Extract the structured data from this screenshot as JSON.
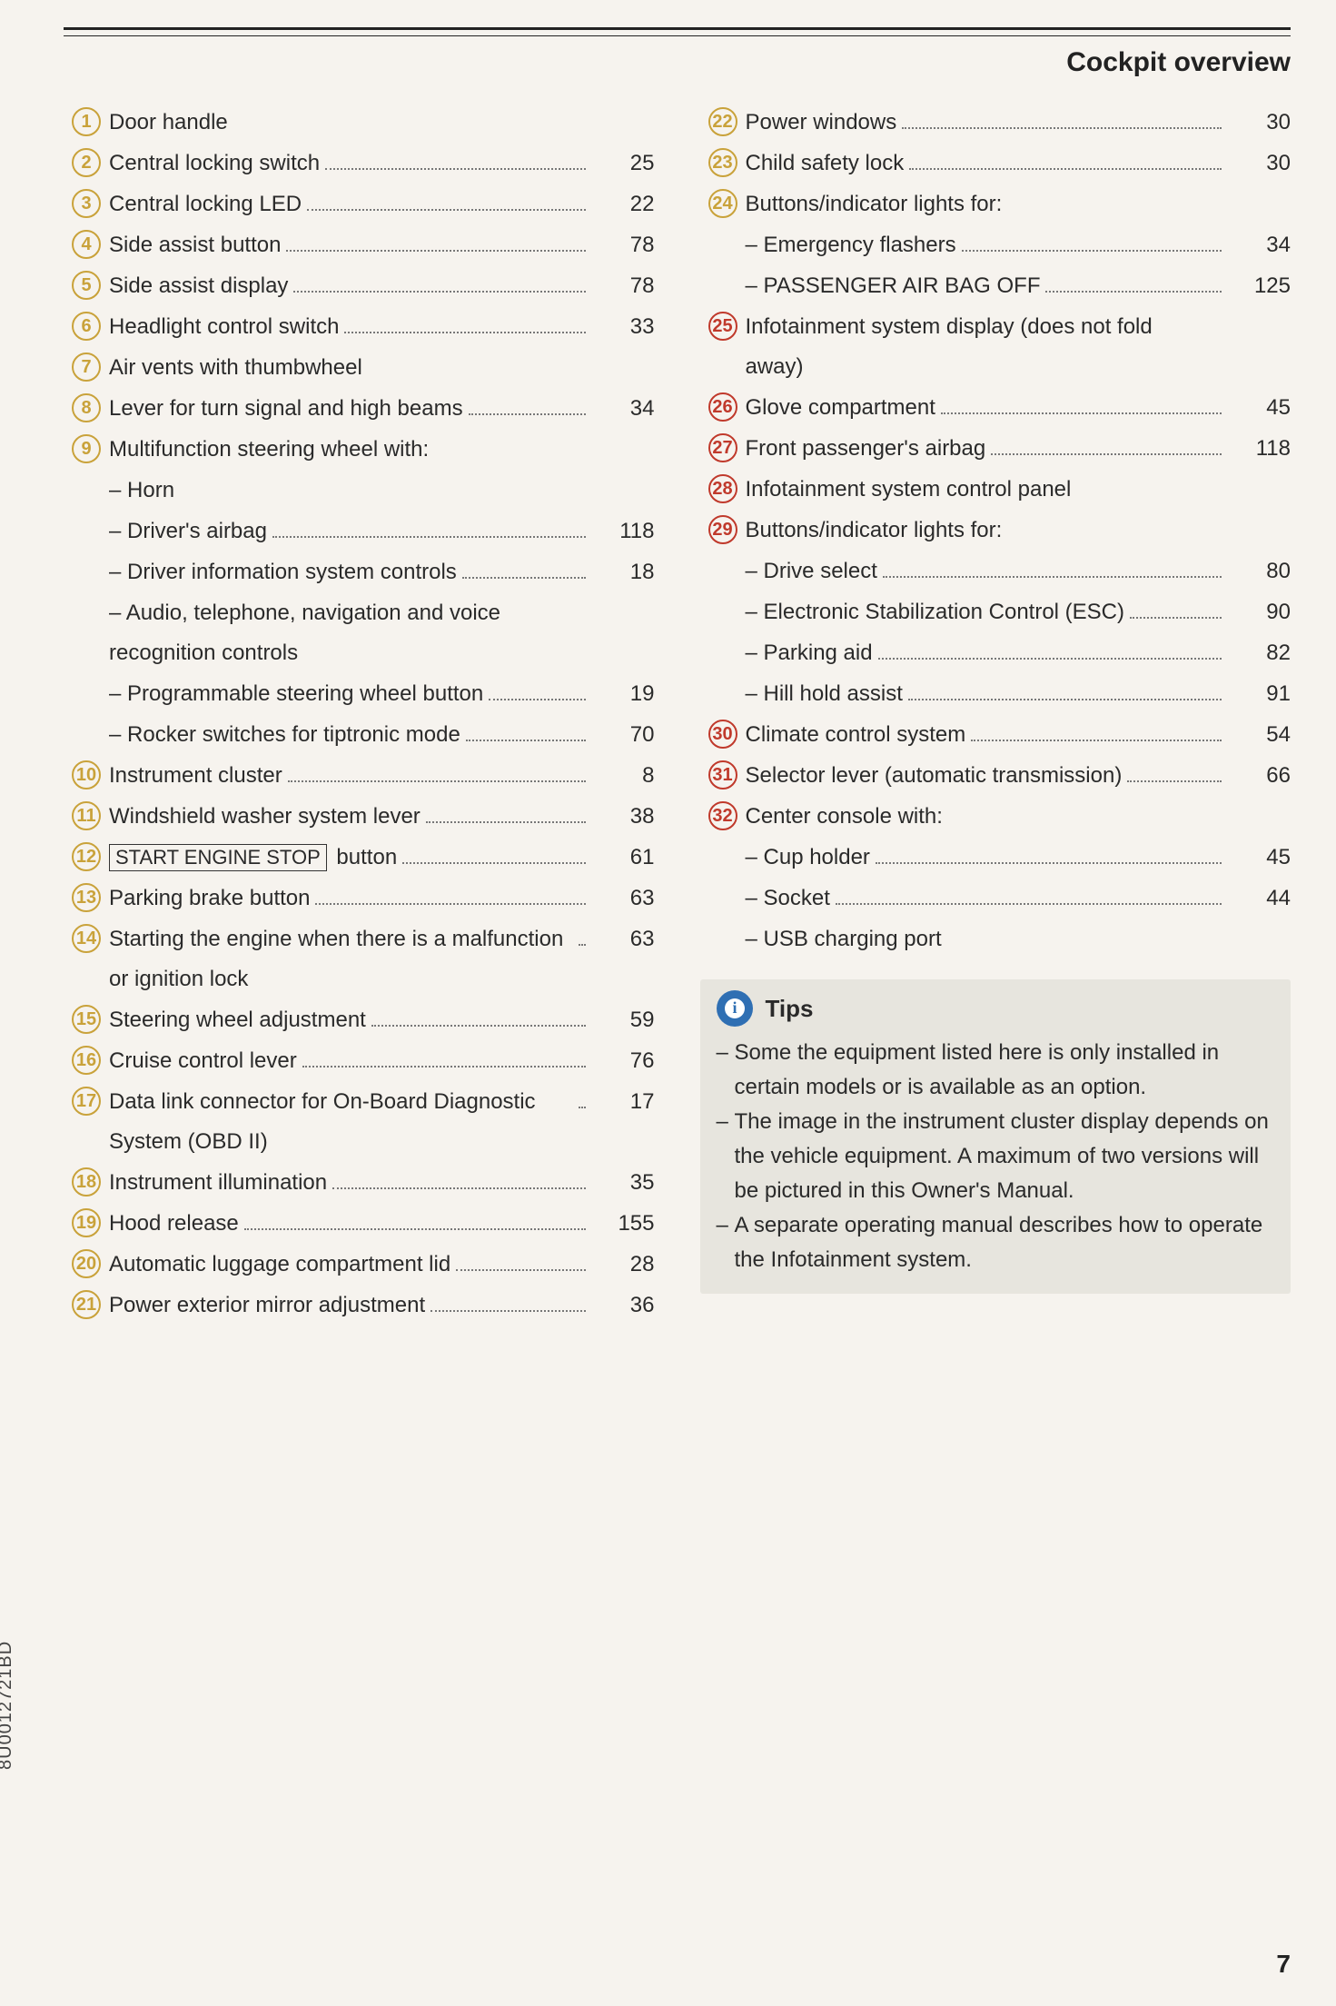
{
  "header": {
    "title": "Cockpit overview"
  },
  "side_code": "8U0012721BD",
  "page_number": "7",
  "colors": {
    "circle_default": "#c9a23a",
    "circle_red": "#c0392b",
    "tips_bg": "#e7e5de",
    "tips_icon_bg": "#2f6fb3"
  },
  "left_items": [
    {
      "n": "1",
      "label": "Door handle",
      "page": ""
    },
    {
      "n": "2",
      "label": "Central locking switch",
      "page": "25"
    },
    {
      "n": "3",
      "label": "Central locking LED",
      "page": "22"
    },
    {
      "n": "4",
      "label": "Side assist button",
      "page": "78"
    },
    {
      "n": "5",
      "label": "Side assist display",
      "page": "78"
    },
    {
      "n": "6",
      "label": "Headlight control switch",
      "page": "33"
    },
    {
      "n": "7",
      "label": "Air vents with thumbwheel",
      "page": ""
    },
    {
      "n": "8",
      "label": "Lever for turn signal and high beams",
      "page": "34"
    },
    {
      "n": "9",
      "label": "Multifunction steering wheel with:",
      "page": ""
    },
    {
      "sub": true,
      "label": "Horn",
      "page": ""
    },
    {
      "sub": true,
      "label": "Driver's airbag",
      "page": "118"
    },
    {
      "sub": true,
      "label": "Driver information system controls",
      "page": "18"
    },
    {
      "sub": true,
      "label": "Audio, telephone, navigation and voice recognition controls",
      "page": ""
    },
    {
      "sub": true,
      "label": "Programmable steering wheel button",
      "page": "19"
    },
    {
      "sub": true,
      "label": "Rocker switches for tiptronic mode",
      "page": "70"
    },
    {
      "n": "10",
      "label": "Instrument cluster",
      "page": "8"
    },
    {
      "n": "11",
      "label": "Windshield washer system lever",
      "page": "38"
    },
    {
      "n": "12",
      "boxed": "START ENGINE STOP",
      "after": " button",
      "page": "61"
    },
    {
      "n": "13",
      "label": "Parking brake button",
      "page": "63"
    },
    {
      "n": "14",
      "label": "Starting the engine when there is a malfunction or ignition lock",
      "page": "63"
    },
    {
      "n": "15",
      "label": "Steering wheel adjustment",
      "page": "59"
    },
    {
      "n": "16",
      "label": "Cruise control lever",
      "page": "76"
    },
    {
      "n": "17",
      "label": "Data link connector for On-Board Diagnostic System (OBD II)",
      "page": "17"
    },
    {
      "n": "18",
      "label": "Instrument illumination",
      "page": "35"
    },
    {
      "n": "19",
      "label": "Hood release",
      "page": "155"
    },
    {
      "n": "20",
      "label": "Automatic luggage compartment lid",
      "page": "28"
    },
    {
      "n": "21",
      "label": "Power exterior mirror adjustment",
      "page": "36"
    }
  ],
  "right_items": [
    {
      "n": "22",
      "label": "Power windows",
      "page": "30"
    },
    {
      "n": "23",
      "label": "Child safety lock",
      "page": "30"
    },
    {
      "n": "24",
      "label": "Buttons/indicator lights for:",
      "page": ""
    },
    {
      "sub": true,
      "label": "Emergency flashers",
      "page": "34"
    },
    {
      "sub": true,
      "label": "PASSENGER AIR BAG OFF",
      "page": "125"
    },
    {
      "n": "25",
      "red": true,
      "label": "Infotainment system display (does not fold away)",
      "page": ""
    },
    {
      "n": "26",
      "red": true,
      "label": "Glove compartment",
      "page": "45"
    },
    {
      "n": "27",
      "red": true,
      "label": "Front passenger's airbag",
      "page": "118"
    },
    {
      "n": "28",
      "red": true,
      "label": "Infotainment system control panel",
      "page": ""
    },
    {
      "n": "29",
      "red": true,
      "label": "Buttons/indicator lights for:",
      "page": ""
    },
    {
      "sub": true,
      "label": "Drive select",
      "page": "80"
    },
    {
      "sub": true,
      "label": "Electronic Stabilization Control (ESC)",
      "page": "90"
    },
    {
      "sub": true,
      "label": "Parking aid",
      "page": "82"
    },
    {
      "sub": true,
      "label": "Hill hold assist",
      "page": "91"
    },
    {
      "n": "30",
      "red": true,
      "label": "Climate control system",
      "page": "54"
    },
    {
      "n": "31",
      "red": true,
      "label": "Selector lever (automatic transmission)",
      "page": "66"
    },
    {
      "n": "32",
      "red": true,
      "label": "Center console with:",
      "page": ""
    },
    {
      "sub": true,
      "label": "Cup holder",
      "page": "45"
    },
    {
      "sub": true,
      "label": "Socket",
      "page": "44"
    },
    {
      "sub": true,
      "label": "USB charging port",
      "page": ""
    }
  ],
  "tips": {
    "heading": "Tips",
    "items": [
      "Some the equipment listed here is only installed in certain models or is available as an option.",
      "The image in the instrument cluster display depends on the vehicle equipment. A maximum of two versions will be pictured in this Owner's Manual.",
      "A separate operating manual describes how to operate the Infotainment system."
    ]
  }
}
